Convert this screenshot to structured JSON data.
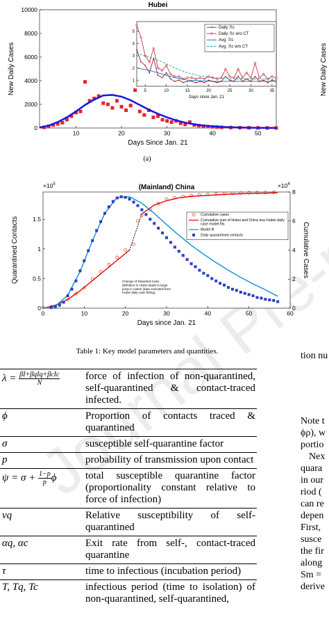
{
  "chart_data": [
    {
      "type": "line",
      "title": "Hubei",
      "xlabel": "Days Since Jan. 21",
      "ylabel": "New Daily Cases",
      "xlim": [
        2,
        54
      ],
      "xticks": [
        10,
        20,
        30,
        40,
        50
      ],
      "ylim": [
        0,
        10000
      ],
      "yticks": [
        0,
        2000,
        4000,
        6000,
        8000,
        10000
      ],
      "series": [
        {
          "color": "#e8232a",
          "marker": "square",
          "line": "none",
          "x": [
            3,
            4,
            5,
            6,
            7,
            8,
            9,
            10,
            11,
            12,
            13,
            14,
            15,
            16,
            17,
            18,
            19,
            20,
            21,
            22,
            23,
            24,
            25,
            26,
            27,
            28,
            29,
            30,
            31,
            32,
            33,
            34,
            35,
            36,
            37,
            38,
            39,
            40,
            41,
            42,
            44,
            46,
            48,
            50,
            52,
            54
          ],
          "values": [
            50,
            150,
            250,
            350,
            450,
            700,
            1000,
            1300,
            1400,
            3900,
            2300,
            2500,
            2700,
            2100,
            2000,
            1700,
            2300,
            1800,
            1500,
            1900,
            3200,
            1400,
            1100,
            1500,
            900,
            1000,
            700,
            600,
            500,
            600,
            400,
            300,
            500,
            250,
            200,
            150,
            120,
            100,
            80,
            60,
            40,
            30,
            20,
            10,
            5,
            3
          ]
        },
        {
          "color": "#1a1adc",
          "marker": "none",
          "line": "solid",
          "x": [
            2,
            4,
            6,
            8,
            10,
            12,
            14,
            16,
            18,
            20,
            22,
            24,
            26,
            28,
            30,
            32,
            34,
            36,
            38,
            40,
            42,
            44,
            46,
            48,
            50,
            52,
            54
          ],
          "values": [
            50,
            200,
            500,
            900,
            1400,
            1950,
            2400,
            2750,
            2800,
            2650,
            2350,
            1950,
            1550,
            1200,
            900,
            650,
            450,
            310,
            210,
            140,
            90,
            60,
            40,
            25,
            15,
            10,
            6
          ]
        }
      ]
    },
    {
      "type": "line",
      "xlabel": "Days since Jan. 21",
      "legend": "upper right",
      "xlim": [
        3,
        36
      ],
      "xticks": [
        5,
        10,
        15,
        20,
        25,
        30,
        35
      ],
      "ylim": [
        0.5,
        5.8
      ],
      "yticks": [
        1,
        2,
        3,
        4,
        5
      ],
      "series": [
        {
          "name": "Daily ℛc",
          "color": "#9e1c2d",
          "marker": "dot",
          "line": "solid",
          "x": [
            3,
            4,
            5,
            6,
            7,
            8,
            9,
            10,
            11,
            12,
            13,
            14,
            15,
            16,
            17,
            18,
            19,
            20,
            21,
            22,
            23,
            24,
            25,
            26,
            27,
            28,
            29,
            30,
            31,
            32,
            33,
            34,
            35,
            36
          ],
          "values": [
            3.5,
            2.5,
            2.2,
            1.6,
            2.8,
            1.4,
            1.2,
            1.6,
            1.1,
            0.9,
            1.0,
            0.8,
            0.9,
            0.9,
            0.8,
            0.9,
            0.8,
            1.0,
            0.9,
            0.8,
            0.9,
            1.3,
            1.0,
            0.9,
            1.3,
            0.9,
            1.1,
            0.9,
            1.3,
            0.9,
            1.0,
            0.8,
            1.0,
            0.9
          ]
        },
        {
          "name": "Daily ℛc w/o CT",
          "color": "#c8374a",
          "marker": "diamond",
          "line": "solid",
          "x": [
            3,
            4,
            5,
            6,
            7,
            8,
            9,
            10,
            11,
            12,
            13,
            14,
            15,
            16,
            17,
            18,
            19,
            20,
            21,
            22,
            23,
            24,
            25,
            26,
            27,
            28,
            29,
            30,
            31,
            32,
            33,
            34,
            35,
            36
          ],
          "values": [
            5.5,
            4.5,
            3.0,
            2.5,
            3.6,
            2.0,
            1.8,
            2.2,
            1.5,
            1.3,
            1.3,
            1.1,
            1.2,
            1.2,
            1.1,
            1.2,
            1.1,
            1.3,
            1.2,
            1.1,
            1.2,
            1.9,
            1.3,
            1.2,
            1.9,
            1.2,
            1.6,
            1.2,
            2.4,
            1.2,
            1.5,
            1.1,
            1.3,
            1.2
          ]
        },
        {
          "name": "Avg. ℛc",
          "color": "#0072bd",
          "marker": "none",
          "line": "solid",
          "x": [
            3,
            6,
            9,
            12,
            15,
            18,
            21,
            24,
            27,
            30,
            33,
            36
          ],
          "values": [
            2.0,
            1.8,
            1.5,
            1.2,
            1.0,
            0.95,
            0.9,
            0.9,
            0.9,
            0.9,
            0.9,
            0.9
          ]
        },
        {
          "name": "Avg. ℛc w/o CT",
          "color": "#0a9fb4",
          "marker": "none",
          "line": "dashed",
          "x": [
            3,
            6,
            9,
            12,
            15,
            18,
            21,
            24,
            27,
            30,
            33,
            36
          ],
          "values": [
            3.2,
            2.9,
            2.5,
            2.0,
            1.6,
            1.35,
            1.2,
            1.15,
            1.1,
            1.1,
            1.1,
            1.1
          ]
        }
      ]
    },
    {
      "type": "line",
      "title": "(Mainland) China",
      "xlabel": "Days since Jan. 21",
      "ylabel": "Quarantined Contacts",
      "y2label": "Cumulative Cases",
      "y_multiplier": "×10",
      "y_multiplier_exp": "5",
      "y2_multiplier": "×10",
      "y2_multiplier_exp": "4",
      "y_color": "#0072bd",
      "y2_color": "#d95319",
      "legend": "upper right",
      "annotation": "Change of Reported Case definition in Hubei leads to large jump in cases (data excluded from Hubei daily case fitting).",
      "xlim": [
        0,
        60
      ],
      "xticks": [
        0,
        10,
        20,
        30,
        40,
        50,
        60
      ],
      "ylim": [
        0,
        196000
      ],
      "yticks": [
        0,
        {
          "value": 50000,
          "label": "0.5"
        },
        {
          "value": 100000,
          "label": "1"
        },
        {
          "value": 150000,
          "label": "1.5"
        }
      ],
      "y2lim": [
        0,
        80000
      ],
      "y2ticks": [
        0,
        {
          "value": 20000,
          "label": "2"
        },
        {
          "value": 40000,
          "label": "4"
        },
        {
          "value": 60000,
          "label": "6"
        },
        {
          "value": 80000,
          "label": "8"
        }
      ],
      "series": [
        {
          "name": "Cumulative cases",
          "color": "#d95319",
          "marker": "circle",
          "line": "none",
          "axis": "y2",
          "x": [
            0,
            2,
            4,
            6,
            8,
            10,
            12,
            14,
            16,
            18,
            20,
            22,
            23,
            24,
            26,
            28,
            30,
            32,
            34,
            36,
            38,
            40,
            42,
            44,
            46,
            48,
            50,
            52,
            54,
            56
          ],
          "values": [
            400,
            1000,
            3000,
            6000,
            10000,
            14000,
            20000,
            25000,
            30000,
            35000,
            40000,
            44000,
            60000,
            64000,
            68000,
            72000,
            75000,
            76000,
            77000,
            77500,
            78000,
            78300,
            78600,
            78900,
            79100,
            79300,
            79500,
            79600,
            79700,
            79800
          ]
        },
        {
          "name": "Cumulative sum of Hubei and China less Hubei daily case model fits",
          "color": "#e8000b",
          "marker": "none",
          "line": "solid",
          "axis": "y2",
          "x": [
            0,
            3,
            6,
            9,
            12,
            15,
            18,
            21,
            22,
            24,
            27,
            30,
            33,
            36,
            39,
            42,
            45,
            48,
            51,
            54,
            57
          ],
          "values": [
            0,
            2000,
            6000,
            12000,
            19000,
            26000,
            33000,
            40000,
            null,
            65000,
            71000,
            74000,
            76000,
            77000,
            77500,
            78000,
            78500,
            78800,
            79000,
            79200,
            79500
          ]
        },
        {
          "name": "Model fit",
          "color": "#0d8fd0",
          "marker": "none",
          "line": "solid",
          "x": [
            0,
            3,
            6,
            9,
            12,
            15,
            18,
            21,
            24,
            27,
            30,
            33,
            36,
            39,
            42,
            45,
            48,
            51,
            54,
            57
          ],
          "values": [
            0,
            3000,
            22000,
            62000,
            114000,
            160000,
            187000,
            188000,
            177000,
            160000,
            141000,
            123000,
            106000,
            91000,
            77000,
            64000,
            52000,
            41000,
            31000,
            20000
          ]
        },
        {
          "name": "Daily quarantined contacts",
          "color": "#2a3fc4",
          "marker": "square",
          "line": "none",
          "x": [
            2,
            3,
            4,
            5,
            6,
            7,
            8,
            9,
            10,
            11,
            12,
            13,
            14,
            15,
            16,
            17,
            18,
            19,
            20,
            21,
            22,
            23,
            24,
            25,
            26,
            27,
            28,
            29,
            30,
            31,
            32,
            33,
            34,
            35,
            36,
            37,
            38,
            39,
            40,
            41,
            42,
            43,
            44,
            45,
            46,
            47,
            48,
            49,
            50,
            51,
            52,
            53,
            54,
            55,
            56,
            57
          ],
          "values": [
            1000,
            2000,
            5000,
            10000,
            21000,
            32000,
            46000,
            63000,
            80000,
            97000,
            114000,
            131000,
            146000,
            160000,
            171000,
            180000,
            186000,
            188000,
            187000,
            184000,
            179000,
            173000,
            166000,
            158000,
            150000,
            143000,
            135000,
            127000,
            119000,
            111000,
            103000,
            96000,
            89000,
            82000,
            75000,
            70000,
            64000,
            59000,
            55000,
            50000,
            46000,
            42000,
            39000,
            35000,
            32000,
            30000,
            27000,
            25000,
            23000,
            21000,
            18000,
            17000,
            15000,
            14000,
            13000,
            11000
          ]
        }
      ]
    }
  ],
  "figure_label": "(a)",
  "right_figure_ylabel": "New Daily Cases",
  "table": {
    "caption": "Table 1: Key model parameters and quantities.",
    "rows": [
      {
        "symbol": {
          "lhs": "λ =",
          "num": "βI+βqIq+βcIc",
          "den": "N"
        },
        "description": "force of infection of non-quarantined, self-quarantined & contact-traced infected."
      },
      {
        "symbol": "ϕ",
        "description": "Proportion of contacts traced & quarantined"
      },
      {
        "symbol": "σ",
        "description": "susceptible self-quarantine factor"
      },
      {
        "symbol": "p",
        "description": "probability of transmission upon contact"
      },
      {
        "symbol": {
          "lhs": "ψ = σ +",
          "num": "1−p",
          "den": "p",
          "rhs": "ϕ"
        },
        "description": "total susceptible quarantine factor (proportionality constant relative to force of infection)"
      },
      {
        "symbol": "νq",
        "description": "Relative susceptibility of self-quarantined"
      },
      {
        "symbol": "αq, αc",
        "description": "Exit rate from self-, contact-traced quarantine"
      },
      {
        "symbol": "τ",
        "description": "time to infectious (incubation period)"
      },
      {
        "symbol": "T, Tq, Tc",
        "description": "infectious period (time to isolation) of non-quarantined, self-quarantined,"
      }
    ]
  },
  "right_caption_fragment": "tion nu",
  "right_paragraph_fragments": [
    "Note t",
    "ϕρ), w",
    "portio",
    "Nex",
    "quara",
    "in our",
    "riod (",
    "can re",
    "depen",
    "First,",
    "susce",
    "the fir",
    "along",
    "Sm =",
    "derive"
  ],
  "watermark": "Journal Pre-proof"
}
